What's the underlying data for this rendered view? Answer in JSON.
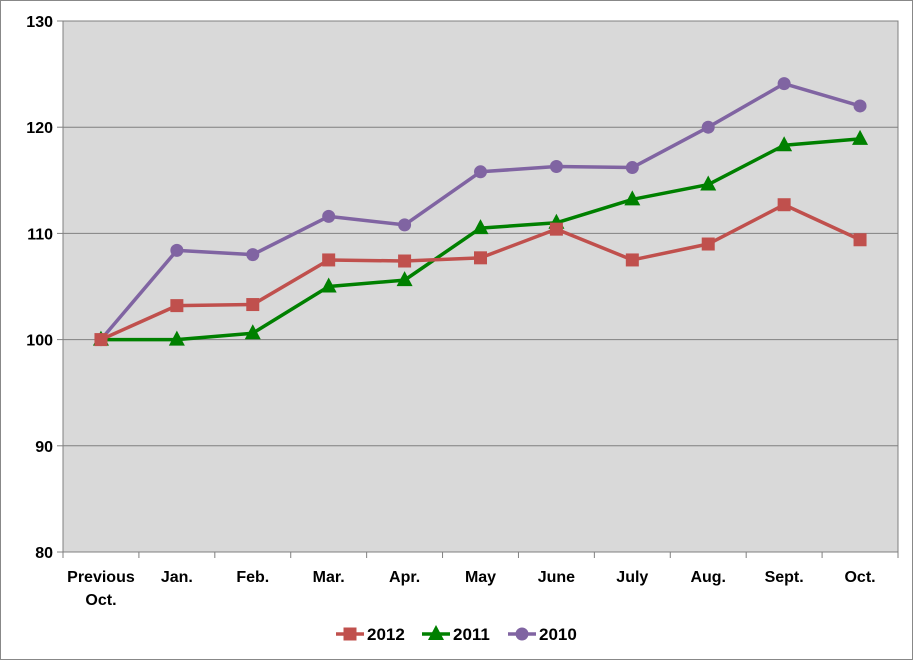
{
  "chart_data": {
    "type": "line",
    "categories": [
      "Previous Oct.",
      "Jan.",
      "Feb.",
      "Mar.",
      "Apr.",
      "May",
      "June",
      "July",
      "Aug.",
      "Sept.",
      "Oct."
    ],
    "category_lines": [
      [
        "Previous",
        "Oct."
      ],
      [
        "Jan."
      ],
      [
        "Feb."
      ],
      [
        "Mar."
      ],
      [
        "Apr."
      ],
      [
        "May"
      ],
      [
        "June"
      ],
      [
        "July"
      ],
      [
        "Aug."
      ],
      [
        "Sept."
      ],
      [
        "Oct."
      ]
    ],
    "series": [
      {
        "name": "2012",
        "color": "#c0504d",
        "marker": "square",
        "values": [
          100,
          103.2,
          103.3,
          107.5,
          107.4,
          107.7,
          110.4,
          107.5,
          109.0,
          112.7,
          109.4
        ]
      },
      {
        "name": "2011",
        "color": "#008000",
        "marker": "triangle",
        "values": [
          100,
          100,
          100.6,
          105.0,
          105.6,
          110.5,
          111.0,
          113.2,
          114.6,
          118.3,
          118.9
        ]
      },
      {
        "name": "2010",
        "color": "#8064a2",
        "marker": "circle",
        "values": [
          100,
          108.4,
          108.0,
          111.6,
          110.8,
          115.8,
          116.3,
          116.2,
          120.0,
          124.1,
          122.0
        ]
      }
    ],
    "y_ticks": [
      "80",
      "90",
      "100",
      "110",
      "120",
      "130"
    ],
    "ylim": [
      80,
      130
    ],
    "grid": true,
    "plot_background": "#d9d9d9",
    "legend_position": "bottom"
  }
}
